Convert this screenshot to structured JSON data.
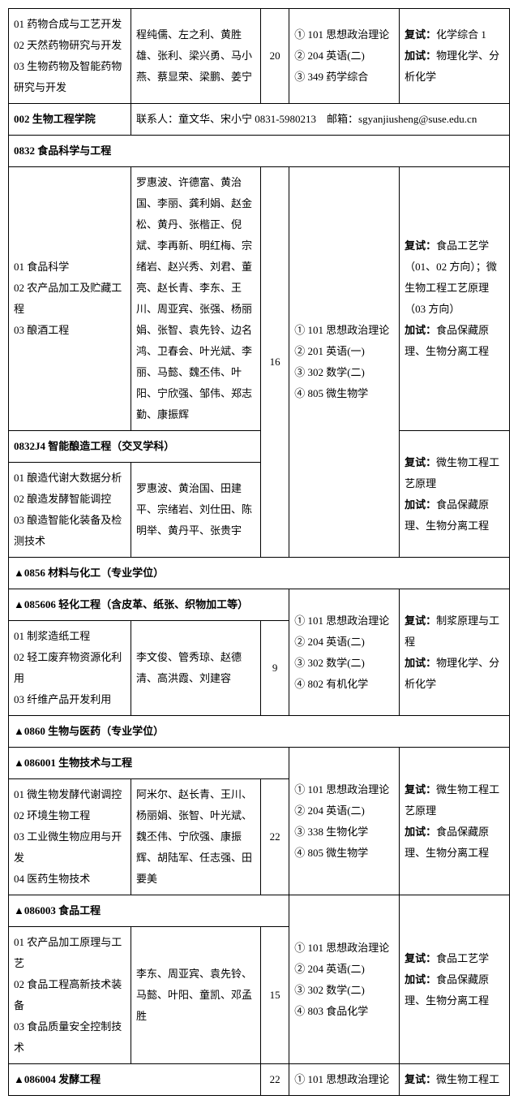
{
  "row1": {
    "c1": "01 药物合成与工艺开发\n02 天然药物研究与开发\n03 生物药物及智能药物研究与开发",
    "c2": "程纯儒、左之利、黄胜雄、张利、梁兴勇、马小燕、蔡显荣、梁鹏、姜宁",
    "c3": "20",
    "c4": "① 101 思想政治理论\n② 204 英语(二)\n③ 349 药学综合",
    "c5": "复试：化学综合 1\n加试：物理化学、分析化学"
  },
  "row2": {
    "dept": "002 生物工程学院",
    "contact": "联系人：童文华、宋小宁 0831-5980213　邮箱：sgyanjiusheng@suse.edu.cn"
  },
  "row3": {
    "title": "0832 食品科学与工程"
  },
  "row4": {
    "c1": "01 食品科学\n02 农产品加工及贮藏工程\n03 酿酒工程",
    "c2": "罗惠波、许德富、黄治国、李丽、龚利娟、赵金松、黄丹、张楷正、倪斌、李再新、明红梅、宗绪岩、赵兴秀、刘君、董亮、赵长青、李东、王川、周亚宾、张强、杨丽娟、张智、袁先铃、边名鸿、卫春会、叶光斌、李丽、马懿、魏丕伟、叶阳、宁欣强、邹伟、郑志勤、康振辉",
    "c3": "16",
    "c4": "① 101 思想政治理论\n② 201 英语(一)\n③ 302 数学(二)\n④ 805 微生物学",
    "c5": "复试：食品工艺学（01、02 方向）；微生物工程工艺原理（03 方向）\n加试：食品保藏原理、生物分离工程"
  },
  "row5": {
    "title": "0832J4 智能酿造工程（交叉学科）"
  },
  "row6": {
    "c1": "01 酿造代谢大数据分析\n02 酿造发酵智能调控\n03 酿造智能化装备及检测技术",
    "c2": "罗惠波、黄治国、田建平、宗绪岩、刘仕田、陈明举、黄丹平、张贵宇",
    "c5": "复试：微生物工程工艺原理\n加试：食品保藏原理、生物分离工程"
  },
  "row7": {
    "title": "▲0856 材料与化工（专业学位）"
  },
  "row8": {
    "title": "▲085606 轻化工程（含皮革、纸张、织物加工等）"
  },
  "row9": {
    "c1": "01 制浆造纸工程\n02 轻工废弃物资源化利用\n03 纤维产品开发利用",
    "c2": "李文俊、管秀琼、赵德清、高洪霞、刘建容",
    "c3": "9",
    "c4": "① 101 思想政治理论\n② 204 英语(二)\n③ 302 数学(二)\n④ 802 有机化学",
    "c5": "复试：制浆原理与工程\n加试：物理化学、分析化学"
  },
  "row10": {
    "title": "▲0860 生物与医药（专业学位）"
  },
  "row11": {
    "title": "▲086001 生物技术与工程"
  },
  "row12": {
    "c1": "01 微生物发酵代谢调控\n02 环境生物工程\n03 工业微生物应用与开发\n04 医药生物技术",
    "c2": "阿米尔、赵长青、王川、杨丽娟、张智、叶光斌、魏丕伟、宁欣强、康振辉、胡陆军、任志强、田要美",
    "c3": "22",
    "c4": "① 101 思想政治理论\n② 204 英语(二)\n③ 338 生物化学\n④ 805 微生物学",
    "c5": "复试：微生物工程工艺原理\n加试：食品保藏原理、生物分离工程"
  },
  "row13": {
    "title": "▲086003 食品工程"
  },
  "row14": {
    "c1": "01 农产品加工原理与工艺\n02 食品工程高新技术装备\n03 食品质量安全控制技术",
    "c2": "李东、周亚宾、袁先铃、马懿、叶阳、童凯、邓孟胜",
    "c3": "15",
    "c4": "① 101 思想政治理论\n② 204 英语(二)\n③ 302 数学(二)\n④ 803 食品化学",
    "c5": "复试：食品工艺学\n加试：食品保藏原理、生物分离工程"
  },
  "row15": {
    "title": "▲086004 发酵工程",
    "c3": "22",
    "c4": "① 101 思想政治理论",
    "c5": "复试：微生物工程工"
  },
  "labels": {
    "fushi": "复试：",
    "jiashi": "加试："
  }
}
